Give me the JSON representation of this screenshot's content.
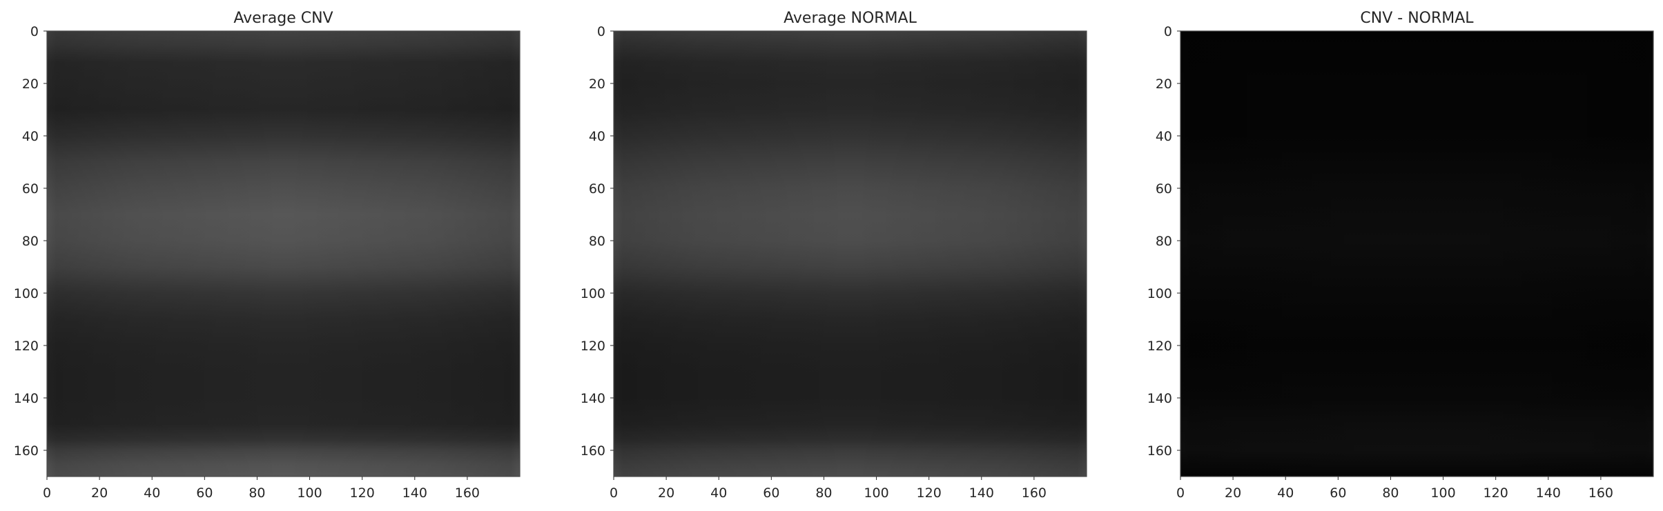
{
  "chart_data": [
    {
      "type": "heatmap",
      "title": "Average CNV",
      "colormap": "gray",
      "x_ticks": [
        0,
        20,
        40,
        60,
        80,
        100,
        120,
        140,
        160
      ],
      "y_ticks": [
        0,
        20,
        40,
        60,
        80,
        100,
        120,
        140,
        160
      ],
      "xlim": [
        0,
        180
      ],
      "ylim": [
        170,
        0
      ],
      "grid": false,
      "intensity_profile": {
        "y": [
          0,
          5,
          12,
          20,
          30,
          40,
          50,
          60,
          70,
          80,
          90,
          100,
          110,
          120,
          130,
          140,
          150,
          156,
          160,
          165,
          170
        ],
        "v": [
          0.26,
          0.23,
          0.17,
          0.16,
          0.15,
          0.2,
          0.27,
          0.31,
          0.34,
          0.33,
          0.29,
          0.21,
          0.17,
          0.15,
          0.14,
          0.14,
          0.15,
          0.2,
          0.27,
          0.32,
          0.35
        ]
      }
    },
    {
      "type": "heatmap",
      "title": "Average NORMAL",
      "colormap": "gray",
      "x_ticks": [
        0,
        20,
        40,
        60,
        80,
        100,
        120,
        140,
        160
      ],
      "y_ticks": [
        0,
        20,
        40,
        60,
        80,
        100,
        120,
        140,
        160
      ],
      "xlim": [
        0,
        180
      ],
      "ylim": [
        170,
        0
      ],
      "grid": false,
      "intensity_profile": {
        "y": [
          0,
          5,
          12,
          20,
          30,
          40,
          50,
          60,
          70,
          80,
          90,
          100,
          110,
          120,
          130,
          140,
          150,
          156,
          160,
          165,
          170
        ],
        "v": [
          0.25,
          0.21,
          0.16,
          0.15,
          0.16,
          0.2,
          0.25,
          0.29,
          0.31,
          0.3,
          0.26,
          0.19,
          0.15,
          0.13,
          0.12,
          0.12,
          0.14,
          0.18,
          0.23,
          0.27,
          0.3
        ]
      }
    },
    {
      "type": "heatmap",
      "title": "CNV - NORMAL",
      "colormap": "gray",
      "x_ticks": [
        0,
        20,
        40,
        60,
        80,
        100,
        120,
        140,
        160
      ],
      "y_ticks": [
        0,
        20,
        40,
        60,
        80,
        100,
        120,
        140,
        160
      ],
      "xlim": [
        0,
        180
      ],
      "ylim": [
        170,
        0
      ],
      "grid": false,
      "intensity_profile": {
        "y": [
          0,
          20,
          40,
          60,
          80,
          100,
          120,
          140,
          150,
          160,
          170
        ],
        "v": [
          0.01,
          0.02,
          0.02,
          0.04,
          0.05,
          0.03,
          0.02,
          0.03,
          0.05,
          0.06,
          0.02
        ]
      }
    }
  ]
}
